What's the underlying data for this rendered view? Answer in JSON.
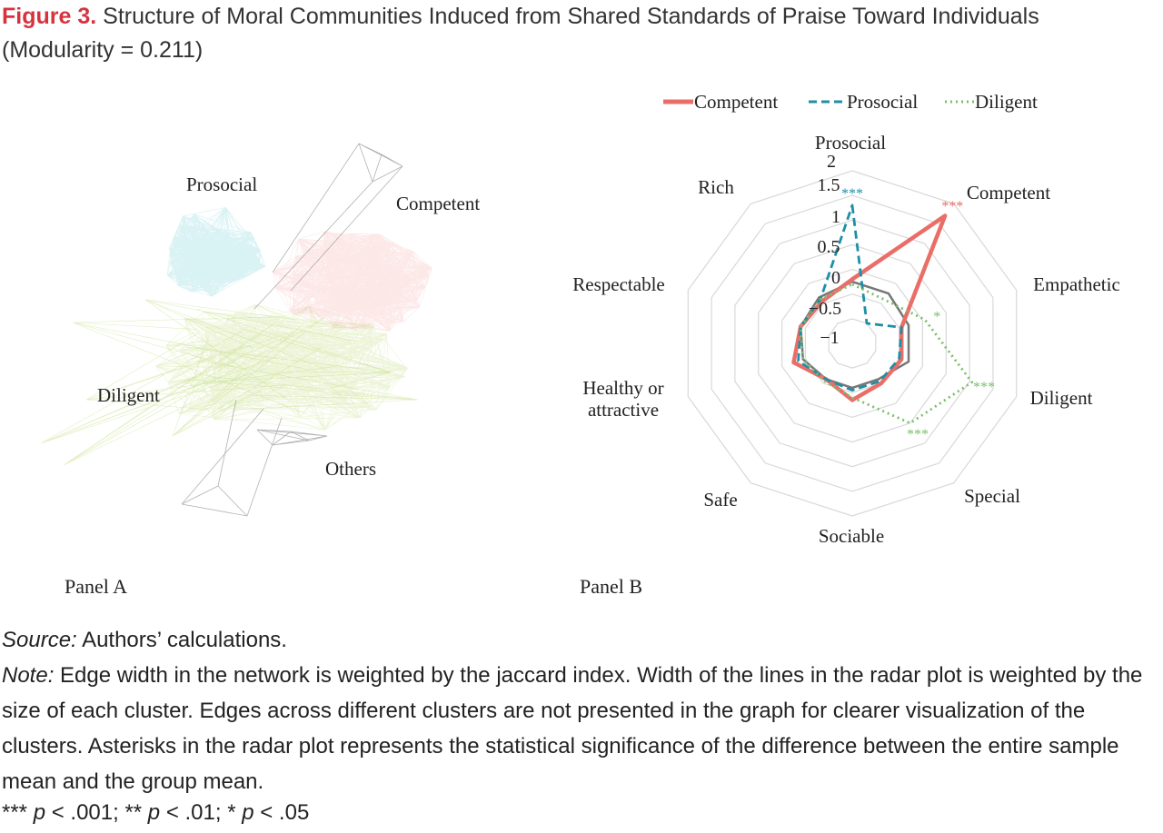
{
  "figure": {
    "label": "Figure 3.",
    "title": "Structure of Moral Communities Induced from Shared Standards of Praise Toward Individuals (Modularity = 0.211)"
  },
  "panel_a": {
    "label": "Panel A",
    "clusters": [
      {
        "name": "Prosocial",
        "color": "#2bb8c4"
      },
      {
        "name": "Competent",
        "color": "#f0736e"
      },
      {
        "name": "Diligent",
        "color": "#a9cf4a"
      },
      {
        "name": "Others",
        "color": "#666666"
      }
    ]
  },
  "panel_b": {
    "label": "Panel B"
  },
  "chart_data": {
    "type": "radar",
    "axes": [
      "Prosocial",
      "Competent",
      "Empathetic",
      "Diligent",
      "Special",
      "Sociable",
      "Safe",
      "Healthy or attractive",
      "Respectable",
      "Rich"
    ],
    "radial_ticks": [
      "2",
      "1.5",
      "1",
      "0.5",
      "0",
      "−0.5",
      "−1"
    ],
    "rlim": [
      -1.5,
      2
    ],
    "legend": "top",
    "series": [
      {
        "name": "",
        "color": "#777777",
        "values": [
          -0.25,
          -0.25,
          -0.3,
          -0.3,
          -0.6,
          -0.6,
          -0.6,
          -0.45,
          -0.4,
          -0.35
        ]
      },
      {
        "name": "Competent",
        "color": "#ea6e68",
        "values": [
          -0.2,
          1.7,
          -0.45,
          -0.45,
          -0.5,
          -0.35,
          -0.6,
          -0.25,
          -0.4,
          -0.45
        ]
      },
      {
        "name": "Prosocial",
        "color": "#1f8ea6",
        "values": [
          1.3,
          -1.0,
          -0.45,
          -0.5,
          -0.55,
          -0.55,
          -0.6,
          -0.35,
          -0.4,
          -0.4
        ]
      },
      {
        "name": "Diligent",
        "color": "#7bbf6a",
        "values": [
          -0.3,
          -0.4,
          0.05,
          1.05,
          0.5,
          -0.4,
          -0.55,
          -0.45,
          -0.4,
          -0.4
        ]
      }
    ],
    "significance": [
      {
        "series": "Prosocial",
        "axis": "Prosocial",
        "marker": "***"
      },
      {
        "series": "Competent",
        "axis": "Competent",
        "marker": "***"
      },
      {
        "series": "Diligent",
        "axis": "Empathetic",
        "marker": "*"
      },
      {
        "series": "Diligent",
        "axis": "Diligent",
        "marker": "***"
      },
      {
        "series": "Diligent",
        "axis": "Special",
        "marker": "***"
      }
    ]
  },
  "source": {
    "label": "Source:",
    "text": " Authors’ calculations."
  },
  "note": {
    "label": "Note:",
    "text": " Edge width in the network is weighted by the jaccard index. Width of the lines in the radar plot is weighted by the size of each cluster. Edges across different clusters are not presented in the graph for clearer visualization of the clusters. Asterisks in the radar plot represents the statistical significance of the difference between the entire sample mean and the group mean."
  },
  "significance_legend": {
    "s1": "*** ",
    "p1": "p",
    "t1": " < .001; ** ",
    "p2": "p",
    "t2": " < .01; * ",
    "p3": "p",
    "t3": " < .05"
  }
}
